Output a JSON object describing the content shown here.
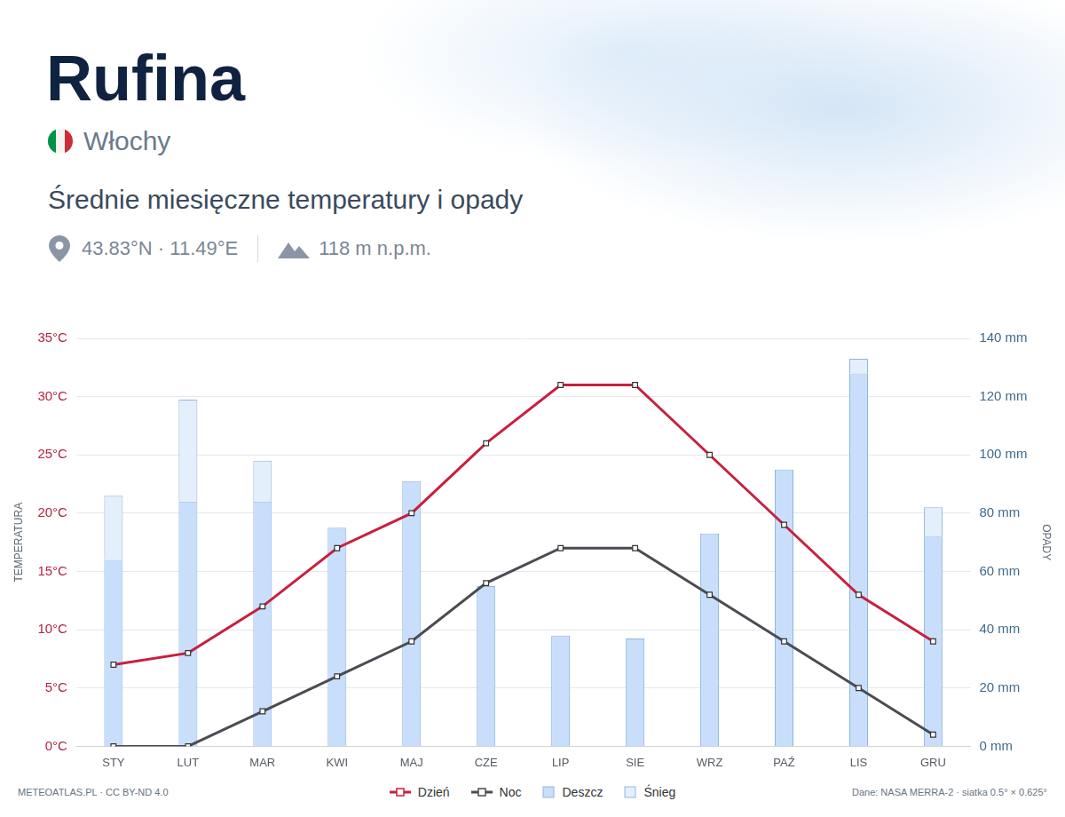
{
  "header": {
    "place": "Rufina",
    "country": "Włochy",
    "coordinates": "43.83°N · 11.49°E",
    "elevation": "118 m n.p.m."
  },
  "footer": {
    "credit": "METEOATLAS.PL · CC BY-ND 4.0",
    "source": "Dane: NASA MERRA-2 · siatka 0.5° × 0.625°"
  },
  "chart_data": {
    "type": "bar",
    "title": "Średnie miesięczne temperatury i opady",
    "y_label": "TEMPERATURA",
    "y2_label": "OPADY",
    "categories": [
      "STY",
      "LUT",
      "MAR",
      "KWI",
      "MAJ",
      "CZE",
      "LIP",
      "SIE",
      "WRZ",
      "PAŹ",
      "LIS",
      "GRU"
    ],
    "series": [
      {
        "name": "Dzień",
        "type": "line",
        "axis": "y",
        "color": "#c8203e",
        "marker": "square",
        "values": [
          7,
          8,
          12,
          17,
          20,
          26,
          31,
          31,
          25,
          19,
          13,
          9
        ]
      },
      {
        "name": "Noc",
        "type": "line",
        "axis": "y",
        "color": "#4a4c54",
        "marker": "square",
        "values": [
          0,
          0,
          3,
          6,
          9,
          14,
          17,
          17,
          13,
          9,
          5,
          1
        ]
      },
      {
        "name": "Deszcz",
        "type": "bar",
        "axis": "y2",
        "color": "#c9defa",
        "values": [
          64,
          84,
          84,
          75,
          91,
          55,
          38,
          37,
          73,
          95,
          128,
          72
        ]
      },
      {
        "name": "Śnieg",
        "type": "bar",
        "axis": "y2",
        "color": "#e3effb",
        "values": [
          22,
          35,
          14,
          0,
          0,
          0,
          0,
          0,
          0,
          0,
          5,
          10
        ]
      }
    ],
    "stacked": true,
    "ylim": [
      0,
      35
    ],
    "yticks": [
      {
        "value": 0,
        "label": "0°C"
      },
      {
        "value": 5,
        "label": "5°C"
      },
      {
        "value": 10,
        "label": "10°C"
      },
      {
        "value": 15,
        "label": "15°C"
      },
      {
        "value": 20,
        "label": "20°C"
      },
      {
        "value": 25,
        "label": "25°C"
      },
      {
        "value": 30,
        "label": "30°C"
      },
      {
        "value": 35,
        "label": "35°C"
      }
    ],
    "y2lim": [
      0,
      140
    ],
    "y2ticks": [
      {
        "value": 0,
        "label": "0 mm"
      },
      {
        "value": 20,
        "label": "20 mm"
      },
      {
        "value": 40,
        "label": "40 mm"
      },
      {
        "value": 60,
        "label": "60 mm"
      },
      {
        "value": 80,
        "label": "80 mm"
      },
      {
        "value": 100,
        "label": "100 mm"
      },
      {
        "value": 120,
        "label": "120 mm"
      },
      {
        "value": 140,
        "label": "140 mm"
      }
    ],
    "grid": true,
    "legend": "bottom"
  }
}
